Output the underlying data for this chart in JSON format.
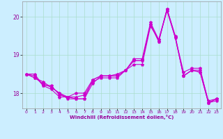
{
  "title": "",
  "xlabel": "Windchill (Refroidissement éolien,°C)",
  "background_color": "#cceeff",
  "grid_color": "#aaddcc",
  "line_color": "#cc00cc",
  "marker": "*",
  "markersize": 3,
  "linewidth": 0.8,
  "ylim": [
    17.6,
    20.4
  ],
  "yticks": [
    18,
    19,
    20
  ],
  "xlim": [
    -0.5,
    23.5
  ],
  "xticks": [
    0,
    1,
    2,
    3,
    4,
    5,
    6,
    7,
    8,
    9,
    10,
    11,
    12,
    13,
    14,
    15,
    16,
    17,
    18,
    19,
    20,
    21,
    22,
    23
  ],
  "series": [
    [
      18.5,
      18.5,
      18.2,
      18.1,
      17.9,
      17.9,
      18.0,
      18.0,
      18.35,
      18.45,
      18.45,
      18.45,
      18.6,
      18.75,
      18.75,
      19.75,
      19.4,
      20.15,
      19.45,
      18.55,
      18.65,
      18.65,
      17.75,
      17.8
    ],
    [
      18.5,
      18.45,
      18.2,
      18.2,
      17.95,
      17.9,
      17.9,
      17.95,
      18.3,
      18.4,
      18.4,
      18.4,
      18.6,
      18.85,
      18.85,
      19.8,
      19.35,
      20.2,
      19.5,
      18.45,
      18.6,
      18.6,
      17.8,
      17.85
    ],
    [
      18.5,
      18.4,
      18.25,
      18.15,
      18.0,
      17.85,
      17.85,
      17.85,
      18.25,
      18.45,
      18.45,
      18.45,
      18.6,
      18.85,
      18.85,
      19.8,
      19.35,
      20.2,
      19.45,
      18.45,
      18.6,
      18.55,
      17.75,
      17.85
    ],
    [
      18.5,
      18.4,
      18.3,
      18.15,
      18.0,
      17.9,
      17.85,
      17.85,
      18.35,
      18.45,
      18.45,
      18.5,
      18.6,
      18.9,
      18.9,
      19.85,
      19.4,
      20.2,
      19.45,
      18.45,
      18.6,
      18.55,
      17.75,
      17.85
    ]
  ]
}
